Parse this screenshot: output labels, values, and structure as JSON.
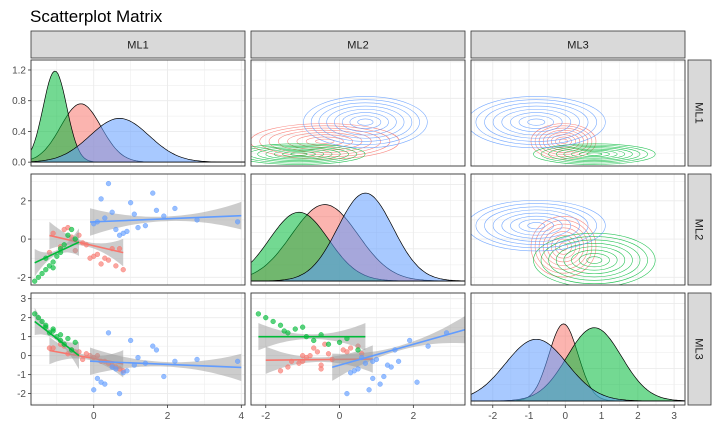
{
  "title": "Scatterplot Matrix",
  "variables": [
    "ML1",
    "ML2",
    "ML3"
  ],
  "chart_data": {
    "type": "scatter",
    "title": "Scatterplot Matrix",
    "layout": "3x3 pairs matrix; diagonal = density, lower = scatter with linear fit, upper = 2D density contours",
    "grid": true,
    "legend": "none",
    "colors": [
      "#F8766D",
      "#00BA38",
      "#619CFF"
    ],
    "axes": {
      "ML1": {
        "range": [
          -1.7,
          4.1
        ],
        "ticks": [
          0,
          2,
          4
        ]
      },
      "ML2": {
        "range": [
          -2.4,
          3.4
        ],
        "ticks": [
          -2,
          0,
          2
        ]
      },
      "ML3": {
        "range": [
          -2.6,
          3.3
        ],
        "ticks": [
          -2,
          -1,
          0,
          1,
          2,
          3
        ]
      }
    },
    "diag_density_ticks": [
      0.0,
      0.4,
      0.8,
      1.2
    ],
    "diag_density_range": [
      -0.05,
      1.33
    ],
    "groups": [
      {
        "color": "#F8766D",
        "densities": {
          "ML1": {
            "mean": -0.35,
            "sd": 0.55,
            "scale": 0.8
          },
          "ML2": {
            "mean": -0.4,
            "sd": 0.9,
            "scale": 1.0
          },
          "ML3": {
            "mean": -0.05,
            "sd": 0.4,
            "scale": 1.0
          }
        },
        "fits": [
          {
            "x": "ML1",
            "y": "ML2",
            "range": [
              -1.2,
              0.8
            ],
            "intercept": -0.35,
            "slope": -0.45
          },
          {
            "x": "ML1",
            "y": "ML3",
            "range": [
              -1.2,
              0.8
            ],
            "intercept": -0.15,
            "slope": -0.35
          },
          {
            "x": "ML2",
            "y": "ML3",
            "range": [
              -2.0,
              0.9
            ],
            "intercept": -0.2,
            "slope": 0.02
          }
        ],
        "points": {
          "ML1": [
            -0.2,
            0.3,
            -0.8,
            -0.5,
            0.6,
            -1.1,
            0.1,
            -0.3,
            0.8,
            -0.6,
            0.4,
            -0.9,
            0.0,
            0.5,
            -0.4,
            -1.2,
            0.2,
            -0.7,
            0.7,
            -0.1
          ],
          "ML2": [
            -0.3,
            -1.0,
            0.5,
            -0.6,
            -1.4,
            0.3,
            -0.8,
            -0.2,
            -1.6,
            0.1,
            -1.1,
            -0.4,
            -0.9,
            -0.5,
            0.2,
            -0.7,
            -1.3,
            0.6,
            -0.5,
            -1.0
          ],
          "ML3": [
            0.1,
            -0.3,
            0.5,
            0.2,
            -0.6,
            0.4,
            0.0,
            -0.2,
            -0.8,
            0.3,
            -0.4,
            0.6,
            -0.1,
            -0.5,
            0.2,
            0.4,
            -0.3,
            0.1,
            -0.7,
            0.0
          ]
        }
      },
      {
        "color": "#00BA38",
        "densities": {
          "ML1": {
            "mean": -1.05,
            "sd": 0.32,
            "scale": 1.25
          },
          "ML2": {
            "mean": -1.1,
            "sd": 0.8,
            "scale": 0.9
          },
          "ML3": {
            "mean": 0.8,
            "sd": 0.75,
            "scale": 0.95
          }
        },
        "fits": [
          {
            "x": "ML1",
            "y": "ML2",
            "range": [
              -1.6,
              -0.4
            ],
            "intercept": 0.2,
            "slope": 0.9
          },
          {
            "x": "ML1",
            "y": "ML3",
            "range": [
              -1.6,
              -0.4
            ],
            "intercept": -0.6,
            "slope": -1.5
          },
          {
            "x": "ML2",
            "y": "ML3",
            "range": [
              -2.2,
              0.7
            ],
            "intercept": 1.0,
            "slope": 0.0
          }
        ],
        "points": {
          "ML1": [
            -1.3,
            -0.9,
            -1.5,
            -0.7,
            -1.1,
            -1.4,
            -0.8,
            -1.2,
            -0.6,
            -1.0,
            -1.6,
            -0.9,
            -1.3,
            -0.5,
            -1.1
          ],
          "ML2": [
            -1.6,
            -0.5,
            -2.0,
            0.2,
            -1.2,
            -1.8,
            -0.3,
            -1.4,
            0.5,
            -0.9,
            -2.2,
            -0.7,
            -1.0,
            0.0,
            -1.5
          ],
          "ML3": [
            1.6,
            1.1,
            2.0,
            0.9,
            1.4,
            1.8,
            0.6,
            1.2,
            0.3,
            1.0,
            2.2,
            0.8,
            1.5,
            0.7,
            1.3
          ]
        }
      },
      {
        "color": "#619CFF",
        "densities": {
          "ML1": {
            "mean": 0.7,
            "sd": 0.8,
            "scale": 0.6
          },
          "ML2": {
            "mean": 0.7,
            "sd": 0.75,
            "scale": 1.15
          },
          "ML3": {
            "mean": -0.8,
            "sd": 0.85,
            "scale": 0.8
          }
        },
        "fits": [
          {
            "x": "ML1",
            "y": "ML2",
            "range": [
              -0.1,
              4.0
            ],
            "intercept": 0.9,
            "slope": 0.08
          },
          {
            "x": "ML1",
            "y": "ML3",
            "range": [
              -0.1,
              4.0
            ],
            "intercept": -0.3,
            "slope": -0.08
          },
          {
            "x": "ML2",
            "y": "ML3",
            "range": [
              -0.2,
              3.4
            ],
            "intercept": -0.5,
            "slope": 0.55
          }
        ],
        "points": {
          "ML1": [
            0.1,
            0.5,
            1.2,
            0.3,
            1.6,
            0.8,
            2.2,
            0.0,
            1.0,
            0.6,
            1.9,
            0.4,
            1.4,
            2.8,
            0.2,
            0.9,
            1.7,
            0.7,
            1.1,
            3.9
          ],
          "ML2": [
            0.9,
            1.4,
            0.6,
            1.1,
            2.4,
            0.3,
            1.6,
            0.8,
            1.9,
            0.5,
            1.2,
            2.9,
            0.7,
            1.0,
            2.1,
            0.4,
            1.5,
            0.2,
            1.3,
            0.9
          ],
          "ML3": [
            -1.2,
            -0.6,
            -0.1,
            -1.5,
            0.5,
            -0.9,
            -0.3,
            -1.8,
            0.8,
            -0.7,
            -1.1,
            1.2,
            -0.4,
            -0.2,
            -1.4,
            -0.8,
            0.3,
            -2.0,
            -0.5,
            -0.3
          ]
        }
      }
    ]
  }
}
